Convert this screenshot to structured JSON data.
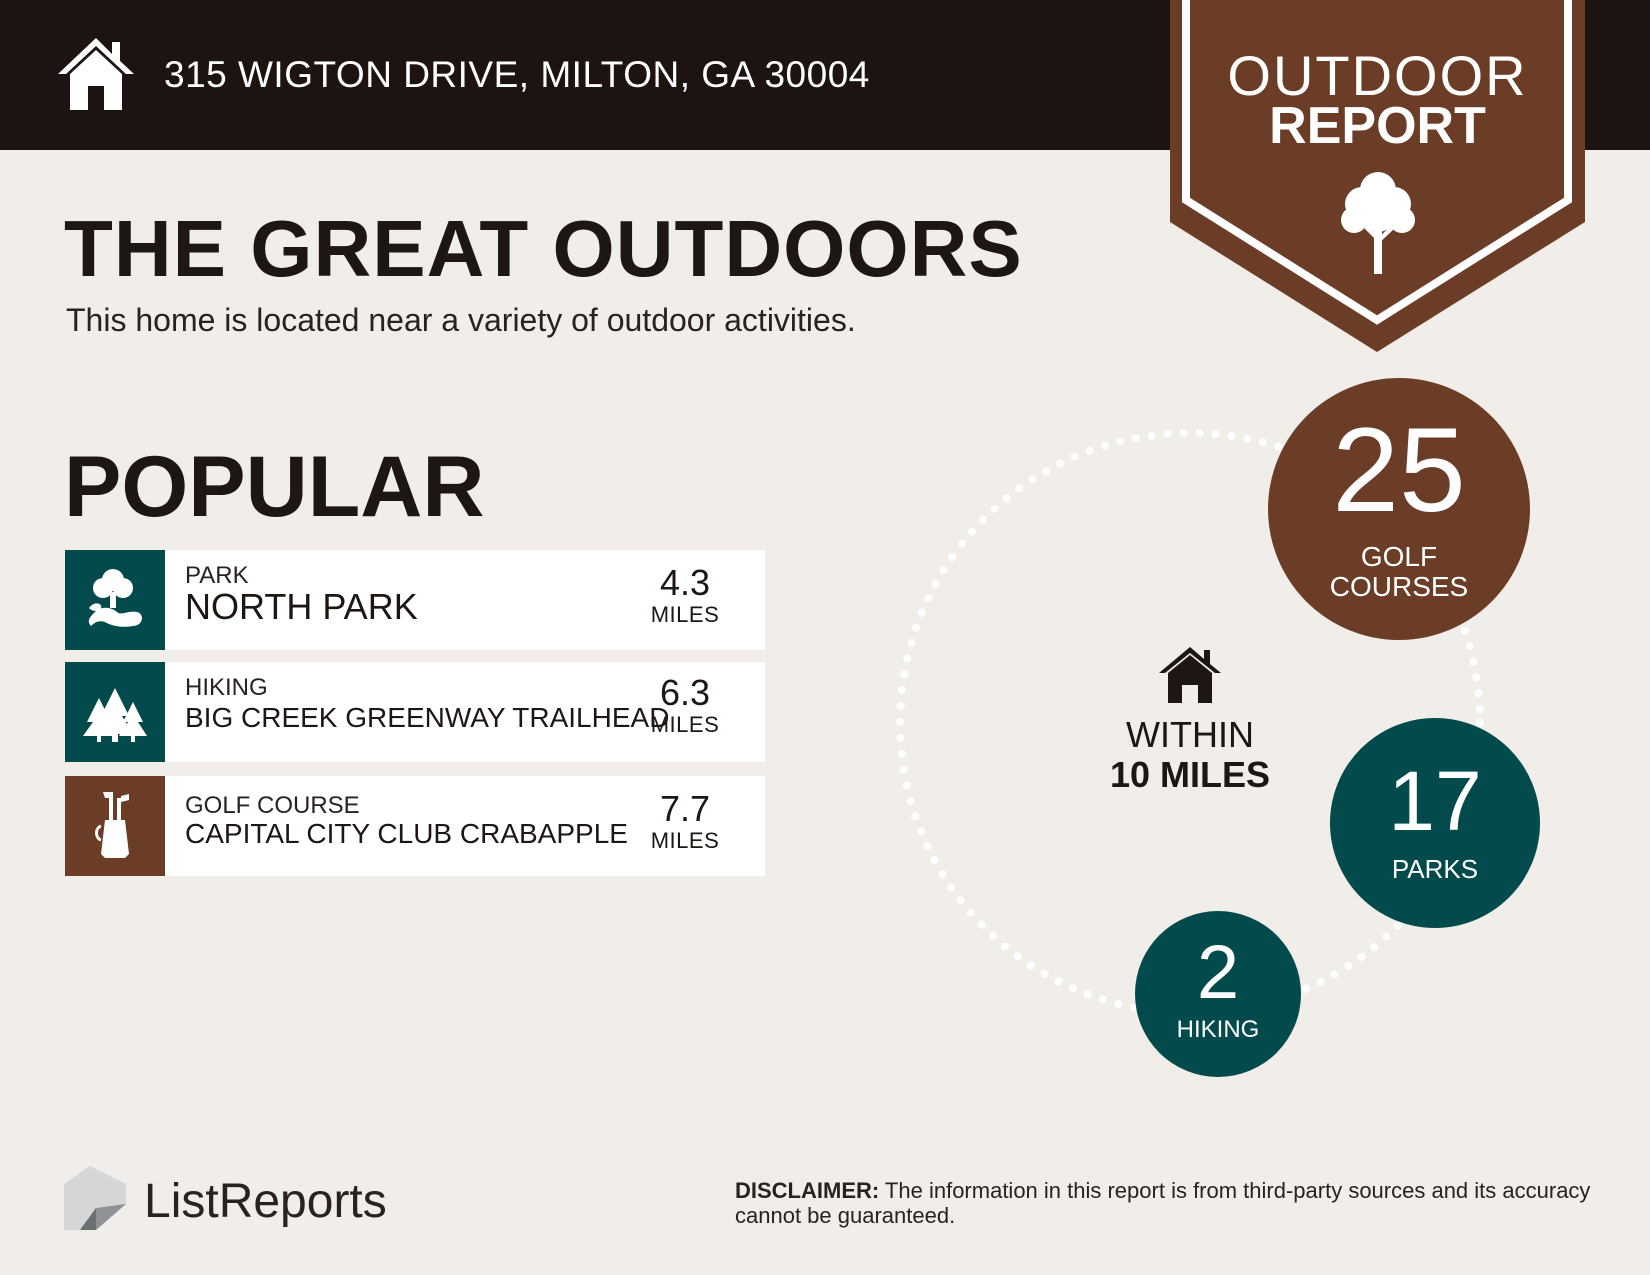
{
  "header": {
    "address": "315 WIGTON DRIVE, MILTON, GA 30004",
    "badge_line1": "OUTDOOR",
    "badge_line2": "REPORT"
  },
  "colors": {
    "dark": "#1d1310",
    "brown": "#6b3d26",
    "teal": "#024a4b",
    "background": "#f1ede9"
  },
  "title": "THE GREAT OUTDOORS",
  "subtitle": "This home is located near a variety of outdoor activities.",
  "popular": {
    "heading": "POPULAR",
    "items": [
      {
        "category": "PARK",
        "name": "NORTH PARK",
        "distance": "4.3",
        "unit": "MILES",
        "icon": "park-icon"
      },
      {
        "category": "HIKING",
        "name": "BIG CREEK GREENWAY TRAILHEAD",
        "distance": "6.3",
        "unit": "MILES",
        "icon": "pine-trees-icon"
      },
      {
        "category": "GOLF COURSE",
        "name": "CAPITAL CITY CLUB CRABAPPLE",
        "distance": "7.7",
        "unit": "MILES",
        "icon": "golf-bag-icon"
      }
    ]
  },
  "within": {
    "line1": "WITHIN",
    "line2": "10 MILES",
    "counts": [
      {
        "number": "25",
        "label_line1": "GOLF",
        "label_line2": "COURSES"
      },
      {
        "number": "17",
        "label_line1": "PARKS"
      },
      {
        "number": "2",
        "label_line1": "HIKING"
      }
    ]
  },
  "footer": {
    "logo": "ListReports",
    "disclaimer_label": "DISCLAIMER:",
    "disclaimer_text": " The information in this report is from third-party sources and its accuracy cannot be guaranteed."
  }
}
